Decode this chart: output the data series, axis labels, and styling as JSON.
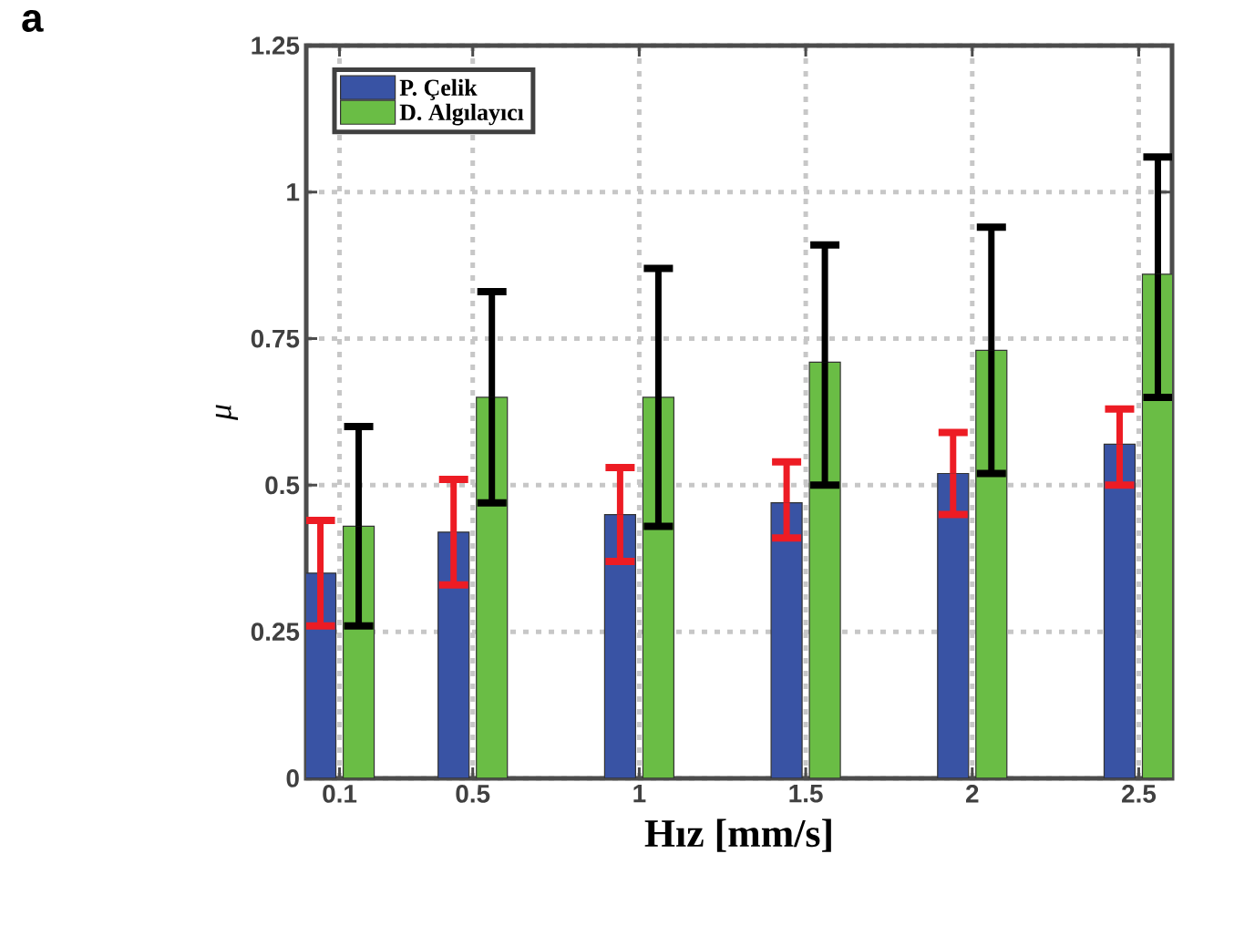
{
  "chart_data": {
    "type": "bar",
    "xlabel": "Hız [mm/s]",
    "ylabel": "μ",
    "annotations": [
      "a"
    ],
    "x": [
      0.1,
      0.5,
      1,
      1.5,
      2,
      2.5
    ],
    "xlim": [
      0,
      2.6
    ],
    "xticks": [
      0.1,
      0.5,
      1,
      1.5,
      2,
      2.5
    ],
    "ylim": [
      0,
      1.25
    ],
    "yticks": [
      0,
      0.25,
      0.5,
      0.75,
      1,
      1.25
    ],
    "grid": true,
    "legend": "top left",
    "series": [
      {
        "name": "P. Çelik",
        "color": "#3953a4",
        "values": [
          0.35,
          0.42,
          0.45,
          0.47,
          0.52,
          0.57
        ],
        "errors": [
          [
            0.26,
            0.44
          ],
          [
            0.33,
            0.51
          ],
          [
            0.37,
            0.53
          ],
          [
            0.41,
            0.54
          ],
          [
            0.45,
            0.59
          ],
          [
            0.5,
            0.63
          ]
        ]
      },
      {
        "name": "D. Algılayıcı",
        "color": "#6abd45",
        "values": [
          0.43,
          0.65,
          0.65,
          0.71,
          0.73,
          0.86
        ],
        "errors": [
          [
            0.26,
            0.6
          ],
          [
            0.47,
            0.83
          ],
          [
            0.43,
            0.87
          ],
          [
            0.5,
            0.91
          ],
          [
            0.52,
            0.94
          ],
          [
            0.65,
            1.06
          ]
        ]
      }
    ]
  }
}
